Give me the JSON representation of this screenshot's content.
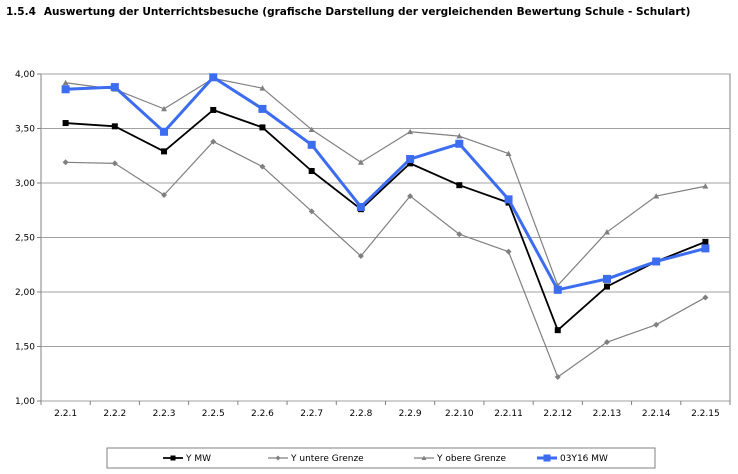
{
  "heading": {
    "number": "1.5.4",
    "title": "Auswertung der Unterrichtsbesuche (grafische Darstellung der vergleichenden Bewertung Schule - Schulart)"
  },
  "chart_data": {
    "type": "line",
    "title": "",
    "xlabel": "",
    "ylabel": "",
    "ylim": [
      1.0,
      4.0
    ],
    "y_ticks": [
      "1,00",
      "1,50",
      "2,00",
      "2,50",
      "3,00",
      "3,50",
      "4,00"
    ],
    "grid": "horizontal",
    "legend_position": "bottom",
    "categories": [
      "2.2.1",
      "2.2.2",
      "2.2.3",
      "2.2.5",
      "2.2.6",
      "2.2.7",
      "2.2.8",
      "2.2.9",
      "2.2.10",
      "2.2.11",
      "2.2.12",
      "2.2.13",
      "2.2.14",
      "2.2.15"
    ],
    "series": [
      {
        "name": "Y MW",
        "color": "#000000",
        "marker": "square",
        "values": [
          3.55,
          3.52,
          3.29,
          3.67,
          3.51,
          3.11,
          2.76,
          3.18,
          2.98,
          2.82,
          1.65,
          2.05,
          2.28,
          2.46
        ]
      },
      {
        "name": "Y untere Grenze",
        "color": "#808080",
        "marker": "diamond",
        "values": [
          3.19,
          3.18,
          2.89,
          3.38,
          3.15,
          2.74,
          2.33,
          2.88,
          2.53,
          2.37,
          1.22,
          1.54,
          1.7,
          1.95
        ]
      },
      {
        "name": "Y obere Grenze",
        "color": "#808080",
        "marker": "triangle",
        "values": [
          3.92,
          3.86,
          3.68,
          3.96,
          3.87,
          3.49,
          3.19,
          3.47,
          3.43,
          3.27,
          2.06,
          2.55,
          2.88,
          2.97
        ]
      },
      {
        "name": "03Y16 MW",
        "color": "#3c6cf0",
        "marker": "square",
        "values": [
          3.86,
          3.88,
          3.47,
          3.97,
          3.68,
          3.35,
          2.78,
          3.22,
          3.36,
          2.85,
          2.02,
          2.12,
          2.28,
          2.4
        ]
      }
    ]
  }
}
